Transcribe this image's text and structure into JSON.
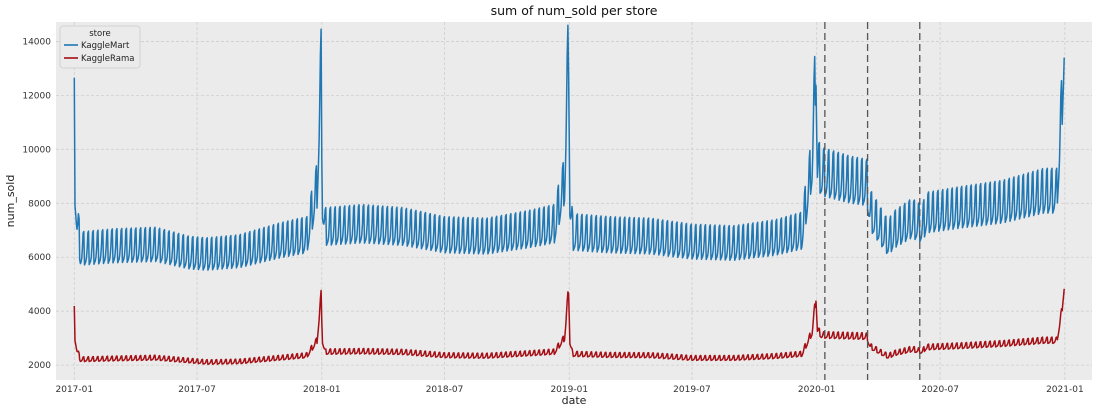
{
  "chart_data": {
    "type": "line",
    "title": "sum of num_sold per store",
    "xlabel": "date",
    "ylabel": "num_sold",
    "x_ticks": [
      "2017-01",
      "2017-07",
      "2018-01",
      "2018-07",
      "2019-01",
      "2019-07",
      "2020-01",
      "2020-07",
      "2021-01"
    ],
    "y_ticks": [
      2000,
      4000,
      6000,
      8000,
      10000,
      12000,
      14000
    ],
    "x_range": [
      "2016-12-05",
      "2021-02-10"
    ],
    "ylim": [
      1450,
      14720
    ],
    "grid": true,
    "legend": {
      "title": "store",
      "placement": "top-left"
    },
    "series": [
      {
        "name": "KaggleMart",
        "color": "#1f77b4",
        "weekly_amplitude": 1.0,
        "points": [
          [
            "2017-01-01",
            11300
          ],
          [
            "2017-01-02",
            8600
          ],
          [
            "2017-01-05",
            7300
          ],
          [
            "2017-01-10",
            6200
          ],
          [
            "2017-03-01",
            6300
          ],
          [
            "2017-05-01",
            6350
          ],
          [
            "2017-06-20",
            6050
          ],
          [
            "2017-07-15",
            6000
          ],
          [
            "2017-09-01",
            6100
          ],
          [
            "2017-11-01",
            6500
          ],
          [
            "2017-12-10",
            6700
          ],
          [
            "2017-12-25",
            8500
          ],
          [
            "2017-12-31",
            12900
          ],
          [
            "2018-01-02",
            8000
          ],
          [
            "2018-01-06",
            7000
          ],
          [
            "2018-03-01",
            7100
          ],
          [
            "2018-05-01",
            7000
          ],
          [
            "2018-07-01",
            6700
          ],
          [
            "2018-09-01",
            6650
          ],
          [
            "2018-11-01",
            6900
          ],
          [
            "2018-12-10",
            7100
          ],
          [
            "2018-12-25",
            8700
          ],
          [
            "2018-12-31",
            13900
          ],
          [
            "2019-01-02",
            8000
          ],
          [
            "2019-01-06",
            6800
          ],
          [
            "2019-03-01",
            6700
          ],
          [
            "2019-05-01",
            6650
          ],
          [
            "2019-07-01",
            6450
          ],
          [
            "2019-09-01",
            6400
          ],
          [
            "2019-11-01",
            6600
          ],
          [
            "2019-12-10",
            6850
          ],
          [
            "2019-12-25",
            9400
          ],
          [
            "2019-12-31",
            13300
          ],
          [
            "2020-01-02",
            9300
          ],
          [
            "2020-01-08",
            9000
          ],
          [
            "2020-02-20",
            8700
          ],
          [
            "2020-03-15",
            8600
          ],
          [
            "2020-03-20",
            7600
          ],
          [
            "2020-04-15",
            6600
          ],
          [
            "2020-04-25",
            6900
          ],
          [
            "2020-05-20",
            7300
          ],
          [
            "2020-06-05",
            7100
          ],
          [
            "2020-06-10",
            7500
          ],
          [
            "2020-08-01",
            7700
          ],
          [
            "2020-10-01",
            7900
          ],
          [
            "2020-12-01",
            8300
          ],
          [
            "2020-12-20",
            8300
          ],
          [
            "2020-12-27",
            11200
          ],
          [
            "2020-12-31",
            13900
          ]
        ]
      },
      {
        "name": "KaggleRama",
        "color": "#a50f15",
        "weekly_amplitude": 0.4,
        "points": [
          [
            "2017-01-01",
            4000
          ],
          [
            "2017-01-02",
            3000
          ],
          [
            "2017-01-05",
            2550
          ],
          [
            "2017-01-10",
            2200
          ],
          [
            "2017-03-01",
            2230
          ],
          [
            "2017-05-01",
            2260
          ],
          [
            "2017-07-15",
            2100
          ],
          [
            "2017-09-01",
            2120
          ],
          [
            "2017-11-01",
            2260
          ],
          [
            "2017-12-10",
            2350
          ],
          [
            "2017-12-25",
            2900
          ],
          [
            "2017-12-31",
            4550
          ],
          [
            "2018-01-02",
            2900
          ],
          [
            "2018-01-06",
            2480
          ],
          [
            "2018-03-01",
            2500
          ],
          [
            "2018-05-01",
            2470
          ],
          [
            "2018-07-01",
            2350
          ],
          [
            "2018-09-01",
            2330
          ],
          [
            "2018-11-01",
            2420
          ],
          [
            "2018-12-10",
            2480
          ],
          [
            "2018-12-25",
            3000
          ],
          [
            "2018-12-31",
            4800
          ],
          [
            "2019-01-02",
            2850
          ],
          [
            "2019-01-06",
            2400
          ],
          [
            "2019-03-01",
            2360
          ],
          [
            "2019-05-01",
            2350
          ],
          [
            "2019-07-01",
            2250
          ],
          [
            "2019-09-01",
            2250
          ],
          [
            "2019-11-01",
            2320
          ],
          [
            "2019-12-10",
            2400
          ],
          [
            "2019-12-25",
            3200
          ],
          [
            "2019-12-31",
            4500
          ],
          [
            "2020-01-02",
            3300
          ],
          [
            "2020-01-08",
            3100
          ],
          [
            "2020-03-15",
            3050
          ],
          [
            "2020-03-20",
            2680
          ],
          [
            "2020-04-15",
            2320
          ],
          [
            "2020-04-25",
            2430
          ],
          [
            "2020-05-20",
            2580
          ],
          [
            "2020-06-05",
            2500
          ],
          [
            "2020-06-10",
            2650
          ],
          [
            "2020-08-01",
            2700
          ],
          [
            "2020-10-01",
            2780
          ],
          [
            "2020-12-01",
            2900
          ],
          [
            "2020-12-20",
            2900
          ],
          [
            "2020-12-27",
            3900
          ],
          [
            "2020-12-31",
            4900
          ]
        ]
      }
    ],
    "vertical_markers": [
      "2020-01-13",
      "2020-03-16",
      "2020-06-01"
    ],
    "marker_color": "#555555"
  }
}
